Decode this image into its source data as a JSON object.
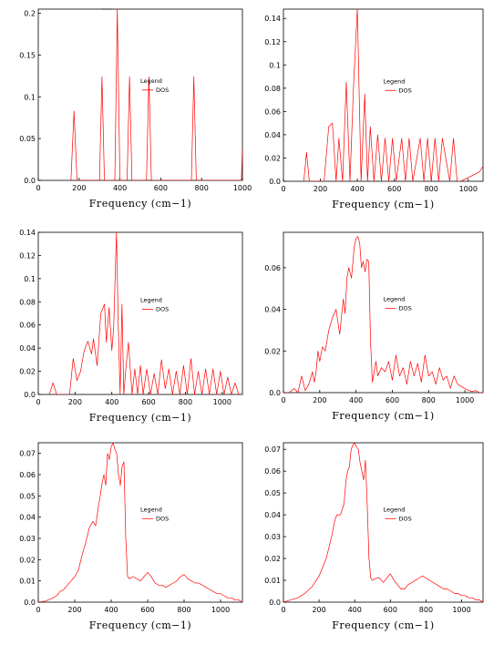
{
  "colors": {
    "series": "#ff0000",
    "frame": "#000000",
    "background": "#ffffff"
  },
  "chart_data": [
    {
      "type": "line",
      "panel": "top-left",
      "xlabel": "Frequency (cm−1)",
      "ylabel": "",
      "xlim": [
        0,
        1000
      ],
      "ylim": [
        0,
        0.205
      ],
      "xticks": [
        0,
        200,
        400,
        600,
        800,
        1000
      ],
      "yticks": [
        0,
        0.05,
        0.1,
        0.15,
        0.2
      ],
      "ytick_labels": [
        "0.0",
        "0.05",
        "0.1",
        "0.15",
        "0.2"
      ],
      "grid": false,
      "legend": {
        "title": "Legend",
        "entries": [
          "DOS"
        ],
        "placement": "center"
      },
      "series": [
        {
          "name": "DOS",
          "x": [
            160,
            175,
            190,
            300,
            312,
            324,
            375,
            387,
            400,
            435,
            447,
            459,
            530,
            542,
            554,
            750,
            762,
            774,
            995,
            1000
          ],
          "y": [
            0,
            0.083,
            0,
            0,
            0.124,
            0,
            0,
            0.205,
            0,
            0,
            0.124,
            0,
            0,
            0.124,
            0,
            0,
            0.124,
            0,
            0,
            0.041
          ]
        }
      ]
    },
    {
      "type": "line",
      "panel": "top-right",
      "xlabel": "Frequency (cm−1)",
      "ylabel": "",
      "xlim": [
        0,
        1080
      ],
      "ylim": [
        0,
        0.148
      ],
      "xticks": [
        0,
        200,
        400,
        600,
        800,
        1000
      ],
      "yticks": [
        0,
        0.02,
        0.04,
        0.06,
        0.08,
        0.1,
        0.12,
        0.14
      ],
      "ytick_labels": [
        "0.0",
        "0.02",
        "0.04",
        "0.06",
        "0.08",
        "0.1",
        "0.12",
        "0.14"
      ],
      "grid": false,
      "legend": {
        "title": "Legend",
        "entries": [
          "DOS"
        ],
        "placement": "center"
      },
      "series": [
        {
          "name": "DOS",
          "x": [
            110,
            125,
            140,
            220,
            245,
            265,
            285,
            300,
            320,
            340,
            360,
            380,
            400,
            420,
            440,
            455,
            470,
            490,
            510,
            530,
            550,
            570,
            590,
            610,
            640,
            660,
            680,
            700,
            740,
            760,
            780,
            800,
            820,
            840,
            860,
            900,
            920,
            940,
            960,
            1060,
            1080
          ],
          "y": [
            0,
            0.025,
            0,
            0,
            0.047,
            0.05,
            0,
            0.037,
            0,
            0.085,
            0,
            0.085,
            0.148,
            0,
            0.075,
            0,
            0.047,
            0,
            0.04,
            0,
            0.037,
            0,
            0.037,
            0,
            0.037,
            0,
            0.037,
            0,
            0.037,
            0,
            0.037,
            0,
            0.037,
            0,
            0.037,
            0,
            0.037,
            0,
            0,
            0.008,
            0.013
          ]
        }
      ]
    },
    {
      "type": "line",
      "panel": "middle-left",
      "xlabel": "Frequency (cm−1)",
      "ylabel": "",
      "xlim": [
        0,
        1110
      ],
      "ylim": [
        0,
        0.14
      ],
      "xticks": [
        0,
        200,
        400,
        600,
        800,
        1000
      ],
      "yticks": [
        0,
        0.02,
        0.04,
        0.06,
        0.08,
        0.1,
        0.12,
        0.14
      ],
      "ytick_labels": [
        "0.0",
        "0.02",
        "0.04",
        "0.06",
        "0.08",
        "0.1",
        "0.12",
        "0.14"
      ],
      "grid": false,
      "legend": {
        "title": "Legend",
        "entries": [
          "DOS"
        ],
        "placement": "center"
      },
      "series": [
        {
          "name": "DOS",
          "x": [
            60,
            80,
            100,
            170,
            190,
            210,
            230,
            250,
            270,
            290,
            300,
            320,
            340,
            360,
            370,
            385,
            400,
            410,
            425,
            435,
            445,
            455,
            465,
            475,
            490,
            510,
            525,
            540,
            555,
            570,
            590,
            610,
            630,
            650,
            670,
            690,
            710,
            730,
            750,
            770,
            790,
            810,
            830,
            850,
            870,
            890,
            910,
            930,
            950,
            970,
            990,
            1010,
            1030,
            1050,
            1070,
            1090
          ],
          "y": [
            0,
            0.01,
            0,
            0,
            0.031,
            0.012,
            0.02,
            0.038,
            0.046,
            0.035,
            0.048,
            0.025,
            0.07,
            0.078,
            0.045,
            0.075,
            0.038,
            0.058,
            0.14,
            0.06,
            0,
            0.078,
            0,
            0.02,
            0.045,
            0,
            0.022,
            0,
            0.025,
            0,
            0.022,
            0,
            0.018,
            0,
            0.03,
            0.005,
            0.022,
            0,
            0.02,
            0,
            0.025,
            0,
            0.031,
            0,
            0.02,
            0,
            0.022,
            0,
            0.022,
            0,
            0.02,
            0,
            0.015,
            0,
            0.01,
            0
          ]
        }
      ]
    },
    {
      "type": "line",
      "panel": "middle-right",
      "xlabel": "Frequency (cm−1)",
      "ylabel": "",
      "xlim": [
        0,
        1100
      ],
      "ylim": [
        0,
        0.077
      ],
      "xticks": [
        0,
        200,
        400,
        600,
        800,
        1000
      ],
      "yticks": [
        0,
        0.02,
        0.04,
        0.06
      ],
      "ytick_labels": [
        "0.0",
        "0.02",
        "0.04",
        "0.06"
      ],
      "grid": false,
      "legend": {
        "title": "Legend",
        "entries": [
          "DOS"
        ],
        "placement": "center"
      },
      "series": [
        {
          "name": "DOS",
          "x": [
            0,
            30,
            60,
            80,
            100,
            120,
            140,
            160,
            170,
            180,
            190,
            200,
            215,
            230,
            250,
            270,
            290,
            310,
            330,
            340,
            350,
            360,
            375,
            390,
            400,
            410,
            420,
            430,
            440,
            450,
            460,
            470,
            480,
            490,
            500,
            510,
            520,
            540,
            560,
            580,
            600,
            620,
            640,
            660,
            680,
            700,
            720,
            740,
            760,
            780,
            800,
            820,
            840,
            860,
            880,
            900,
            920,
            940,
            960,
            980,
            1000,
            1020,
            1040,
            1060,
            1080,
            1100
          ],
          "y": [
            0,
            0,
            0.002,
            0,
            0.008,
            0.001,
            0.004,
            0.01,
            0.005,
            0.01,
            0.02,
            0.015,
            0.022,
            0.02,
            0.03,
            0.036,
            0.04,
            0.028,
            0.045,
            0.038,
            0.055,
            0.06,
            0.055,
            0.07,
            0.074,
            0.075,
            0.072,
            0.06,
            0.063,
            0.058,
            0.064,
            0.063,
            0.025,
            0.005,
            0.01,
            0.015,
            0.008,
            0.012,
            0.01,
            0.015,
            0.006,
            0.018,
            0.008,
            0.012,
            0.004,
            0.015,
            0.008,
            0.014,
            0.005,
            0.018,
            0.008,
            0.01,
            0.004,
            0.012,
            0.006,
            0.008,
            0.002,
            0.008,
            0.004,
            0.003,
            0.002,
            0.001,
            0.0005,
            0.001,
            0,
            0
          ]
        }
      ]
    },
    {
      "type": "line",
      "panel": "bottom-left",
      "xlabel": "Frequency (cm−1)",
      "ylabel": "",
      "xlim": [
        0,
        1120
      ],
      "ylim": [
        0,
        0.075
      ],
      "xticks": [
        0,
        200,
        400,
        600,
        800,
        1000
      ],
      "yticks": [
        0,
        0.01,
        0.02,
        0.03,
        0.04,
        0.05,
        0.06,
        0.07
      ],
      "ytick_labels": [
        "0.0",
        "0.01",
        "0.02",
        "0.03",
        "0.04",
        "0.05",
        "0.06",
        "0.07"
      ],
      "grid": false,
      "legend": {
        "title": "Legend",
        "entries": [
          "DOS"
        ],
        "placement": "center"
      },
      "series": [
        {
          "name": "DOS",
          "x": [
            0,
            40,
            80,
            100,
            120,
            140,
            160,
            180,
            200,
            220,
            240,
            260,
            280,
            300,
            315,
            330,
            340,
            350,
            360,
            370,
            380,
            390,
            400,
            410,
            420,
            430,
            440,
            450,
            460,
            470,
            480,
            490,
            500,
            520,
            540,
            560,
            580,
            600,
            620,
            640,
            660,
            680,
            700,
            720,
            740,
            760,
            780,
            800,
            820,
            840,
            860,
            880,
            900,
            920,
            940,
            960,
            980,
            1000,
            1020,
            1040,
            1060,
            1080,
            1100,
            1120
          ],
          "y": [
            0,
            0.0005,
            0.002,
            0.003,
            0.005,
            0.006,
            0.008,
            0.01,
            0.012,
            0.015,
            0.022,
            0.028,
            0.035,
            0.038,
            0.036,
            0.045,
            0.05,
            0.056,
            0.06,
            0.055,
            0.07,
            0.067,
            0.073,
            0.075,
            0.072,
            0.07,
            0.06,
            0.055,
            0.064,
            0.066,
            0.03,
            0.012,
            0.011,
            0.012,
            0.011,
            0.01,
            0.012,
            0.014,
            0.012,
            0.009,
            0.008,
            0.008,
            0.007,
            0.008,
            0.009,
            0.01,
            0.012,
            0.013,
            0.011,
            0.01,
            0.009,
            0.009,
            0.008,
            0.007,
            0.006,
            0.005,
            0.004,
            0.004,
            0.003,
            0.002,
            0.002,
            0.001,
            0.001,
            0
          ]
        }
      ]
    },
    {
      "type": "line",
      "panel": "bottom-right",
      "xlabel": "Frequency (cm−1)",
      "ylabel": "",
      "xlim": [
        0,
        1120
      ],
      "ylim": [
        0,
        0.073
      ],
      "xticks": [
        0,
        200,
        400,
        600,
        800,
        1000
      ],
      "yticks": [
        0,
        0.01,
        0.02,
        0.03,
        0.04,
        0.05,
        0.06,
        0.07
      ],
      "ytick_labels": [
        "0.0",
        "0.01",
        "0.02",
        "0.03",
        "0.04",
        "0.05",
        "0.06",
        "0.07"
      ],
      "grid": false,
      "legend": {
        "title": "Legend",
        "entries": [
          "DOS"
        ],
        "placement": "center"
      },
      "series": [
        {
          "name": "DOS",
          "x": [
            0,
            40,
            80,
            120,
            160,
            200,
            240,
            270,
            290,
            300,
            320,
            340,
            350,
            360,
            370,
            380,
            390,
            400,
            410,
            420,
            430,
            440,
            450,
            460,
            470,
            480,
            490,
            500,
            520,
            540,
            560,
            580,
            600,
            620,
            640,
            660,
            680,
            700,
            720,
            740,
            760,
            780,
            800,
            820,
            840,
            860,
            880,
            900,
            920,
            940,
            960,
            980,
            1000,
            1020,
            1040,
            1060,
            1080,
            1100,
            1120
          ],
          "y": [
            0,
            0.001,
            0.002,
            0.004,
            0.007,
            0.012,
            0.02,
            0.03,
            0.038,
            0.04,
            0.04,
            0.045,
            0.055,
            0.06,
            0.062,
            0.07,
            0.072,
            0.073,
            0.071,
            0.07,
            0.064,
            0.06,
            0.056,
            0.065,
            0.045,
            0.02,
            0.011,
            0.01,
            0.011,
            0.011,
            0.009,
            0.011,
            0.013,
            0.01,
            0.008,
            0.006,
            0.006,
            0.008,
            0.009,
            0.01,
            0.011,
            0.012,
            0.011,
            0.01,
            0.009,
            0.008,
            0.007,
            0.006,
            0.006,
            0.005,
            0.004,
            0.004,
            0.003,
            0.003,
            0.002,
            0.002,
            0.001,
            0.001,
            0
          ]
        }
      ]
    }
  ]
}
